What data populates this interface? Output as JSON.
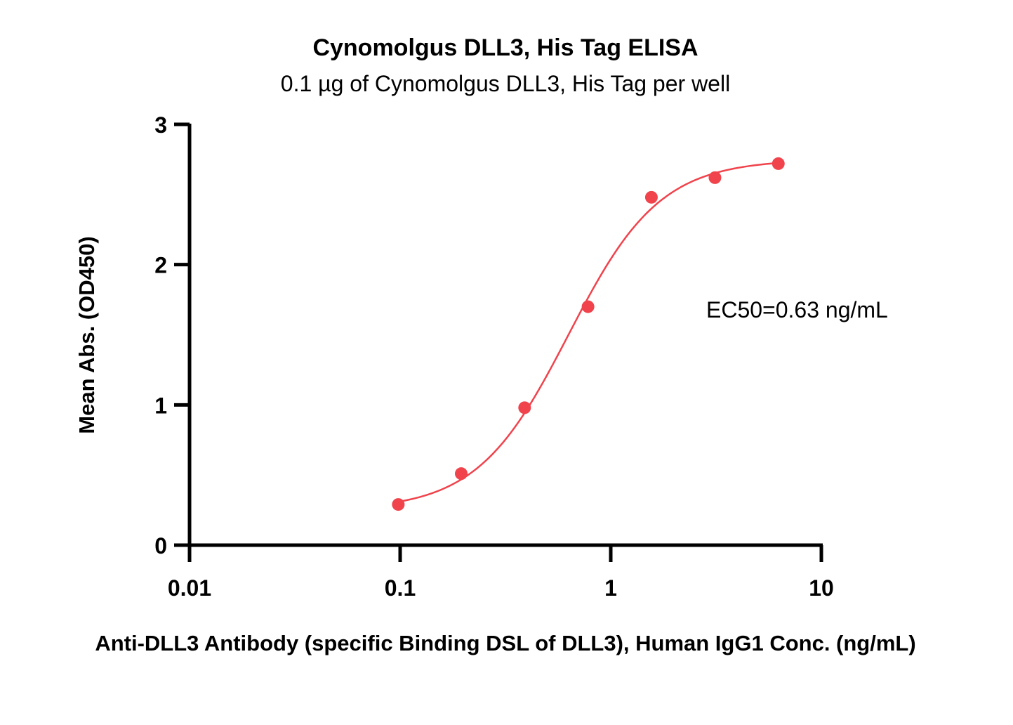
{
  "chart_data": {
    "type": "scatter",
    "title": "Cynomolgus DLL3, His Tag ELISA",
    "subtitle": "0.1 µg of Cynomolgus DLL3, His Tag per well",
    "xlabel": "Anti-DLL3 Antibody (specific Binding DSL of DLL3), Human IgG1 Conc. (ng/mL)",
    "ylabel": "Mean Abs. (OD450)",
    "x_scale": "log",
    "xlim": [
      0.01,
      10
    ],
    "ylim": [
      0,
      3
    ],
    "x_ticks": [
      0.01,
      0.1,
      1,
      10
    ],
    "x_tick_labels": [
      "0.01",
      "0.1",
      "1",
      "10"
    ],
    "y_ticks": [
      0,
      1,
      2,
      3
    ],
    "y_tick_labels": [
      "0",
      "1",
      "2",
      "3"
    ],
    "grid": false,
    "legend": "none",
    "color": "#f0434c",
    "series": [
      {
        "x": [
          0.098,
          0.195,
          0.39,
          0.78,
          1.56,
          3.125,
          6.25
        ],
        "y": [
          0.29,
          0.51,
          0.98,
          1.7,
          2.48,
          2.62,
          2.72
        ]
      }
    ],
    "fit": {
      "model": "4PL",
      "bottom": 0.25,
      "top": 2.75,
      "ec50": 0.63,
      "hill": 2.0
    },
    "annotations": [
      {
        "text": "EC50=0.63 ng/mL"
      }
    ]
  }
}
